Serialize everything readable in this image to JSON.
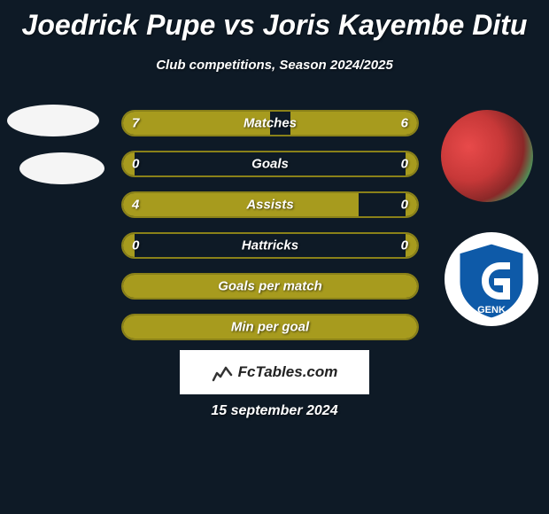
{
  "title": "Joedrick Pupe vs Joris Kayembe Ditu",
  "subtitle": "Club competitions, Season 2024/2025",
  "brand": "FcTables.com",
  "date": "15 september 2024",
  "colors": {
    "background": "#0e1a26",
    "bar_fill": "#a79b1e",
    "bar_border": "#8a8119",
    "text": "#ffffff"
  },
  "club_right": {
    "name": "GENK",
    "shield_bg": "#0e5aa8",
    "shield_border": "#ffffff"
  },
  "stats": [
    {
      "label": "Matches",
      "left_val": "7",
      "right_val": "6",
      "left_pct": 50,
      "right_pct": 43
    },
    {
      "label": "Goals",
      "left_val": "0",
      "right_val": "0",
      "left_pct": 4,
      "right_pct": 4
    },
    {
      "label": "Assists",
      "left_val": "4",
      "right_val": "0",
      "left_pct": 80,
      "right_pct": 4
    },
    {
      "label": "Hattricks",
      "left_val": "0",
      "right_val": "0",
      "left_pct": 4,
      "right_pct": 4
    },
    {
      "label": "Goals per match",
      "left_val": "",
      "right_val": "",
      "left_pct": 100,
      "right_pct": 0
    },
    {
      "label": "Min per goal",
      "left_val": "",
      "right_val": "",
      "left_pct": 100,
      "right_pct": 0
    }
  ]
}
